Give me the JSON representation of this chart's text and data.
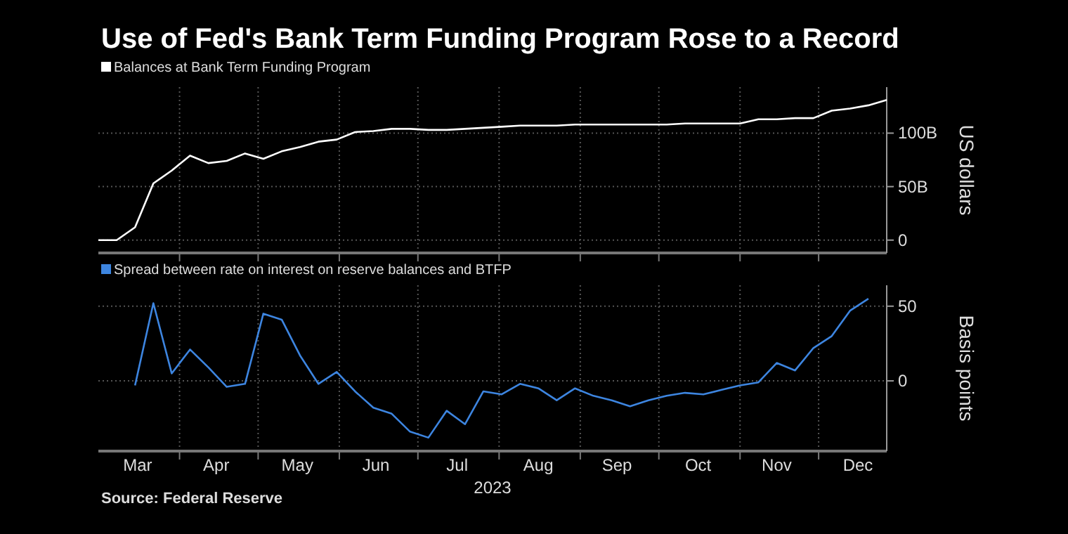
{
  "chart_data": [
    {
      "type": "line",
      "title": "Use of Fed's Bank Term Funding Program Rose to a Record",
      "ylabel": "US dollars",
      "x": [
        "2023-03-01",
        "2023-03-08",
        "2023-03-15",
        "2023-03-22",
        "2023-03-29",
        "2023-04-05",
        "2023-04-12",
        "2023-04-19",
        "2023-04-26",
        "2023-05-03",
        "2023-05-10",
        "2023-05-17",
        "2023-05-24",
        "2023-05-31",
        "2023-06-07",
        "2023-06-14",
        "2023-06-21",
        "2023-06-28",
        "2023-07-05",
        "2023-07-12",
        "2023-07-19",
        "2023-07-26",
        "2023-08-02",
        "2023-08-09",
        "2023-08-16",
        "2023-08-23",
        "2023-08-30",
        "2023-09-06",
        "2023-09-13",
        "2023-09-20",
        "2023-09-27",
        "2023-10-04",
        "2023-10-11",
        "2023-10-18",
        "2023-10-25",
        "2023-11-01",
        "2023-11-08",
        "2023-11-15",
        "2023-11-22",
        "2023-11-29",
        "2023-12-06",
        "2023-12-13",
        "2023-12-20",
        "2023-12-27"
      ],
      "series": [
        {
          "name": "Balances at Bank Term Funding Program",
          "color": "#ffffff",
          "values": [
            0,
            0,
            12,
            53,
            65,
            79,
            72,
            74,
            81,
            76,
            83,
            87,
            92,
            94,
            101,
            102,
            104,
            104,
            103,
            103,
            104,
            105,
            106,
            107,
            107,
            107,
            108,
            108,
            108,
            108,
            108,
            108,
            109,
            109,
            109,
            109,
            113,
            113,
            114,
            114,
            121,
            123,
            126,
            131
          ]
        }
      ],
      "xlim": [
        "2023-03-01",
        "2023-12-27"
      ],
      "xticks": [
        {
          "value": "2023-04-01",
          "label": null
        },
        {
          "value": "2023-05-01",
          "label": null
        },
        {
          "value": "2023-06-01",
          "label": null
        },
        {
          "value": "2023-07-01",
          "label": null
        },
        {
          "value": "2023-08-01",
          "label": null
        },
        {
          "value": "2023-09-01",
          "label": null
        },
        {
          "value": "2023-10-01",
          "label": null
        },
        {
          "value": "2023-11-01",
          "label": null
        },
        {
          "value": "2023-12-01",
          "label": null
        }
      ],
      "ylim": [
        -12,
        143
      ],
      "yticks": [
        {
          "value": 0,
          "label": "0"
        },
        {
          "value": 50,
          "label": "50B"
        },
        {
          "value": 100,
          "label": "100B"
        }
      ],
      "tick_labels": "y",
      "grid": true,
      "legend": "top left"
    },
    {
      "type": "line",
      "ylabel": "Basis points",
      "xlabel": "2023",
      "annotations": [
        "Source: Federal Reserve"
      ],
      "series": [
        {
          "name": "Spread between rate on interest on reserve balances and BTFP",
          "color": "#3d85e0",
          "x": [
            "2023-03-15",
            "2023-03-22",
            "2023-03-29",
            "2023-04-05",
            "2023-04-12",
            "2023-04-19",
            "2023-04-26",
            "2023-05-03",
            "2023-05-10",
            "2023-05-17",
            "2023-05-24",
            "2023-05-31",
            "2023-06-07",
            "2023-06-14",
            "2023-06-21",
            "2023-06-28",
            "2023-07-05",
            "2023-07-12",
            "2023-07-19",
            "2023-07-26",
            "2023-08-02",
            "2023-08-09",
            "2023-08-16",
            "2023-08-23",
            "2023-08-30",
            "2023-09-06",
            "2023-09-13",
            "2023-09-20",
            "2023-09-27",
            "2023-10-04",
            "2023-10-11",
            "2023-10-18",
            "2023-10-25",
            "2023-11-01",
            "2023-11-08",
            "2023-11-15",
            "2023-11-22",
            "2023-11-29",
            "2023-12-06",
            "2023-12-13",
            "2023-12-20"
          ],
          "values": [
            -3,
            52,
            5,
            21,
            9,
            -4,
            -2,
            45,
            41,
            17,
            -2,
            6,
            -7,
            -18,
            -22,
            -34,
            -38,
            -20,
            -29,
            -7,
            -9,
            -2,
            -5,
            -13,
            -5,
            -10,
            -13,
            -17,
            -13,
            -10,
            -8,
            -9,
            -6,
            -3,
            -1,
            12,
            7,
            22,
            30,
            47,
            55
          ]
        }
      ],
      "xlim": [
        "2023-03-01",
        "2023-12-27"
      ],
      "xticks": [
        {
          "value": "2023-04-01",
          "label": null
        },
        {
          "value": "2023-05-01",
          "label": null
        },
        {
          "value": "2023-06-01",
          "label": null
        },
        {
          "value": "2023-07-01",
          "label": null
        },
        {
          "value": "2023-08-01",
          "label": null
        },
        {
          "value": "2023-09-01",
          "label": null
        },
        {
          "value": "2023-10-01",
          "label": null
        },
        {
          "value": "2023-11-01",
          "label": null
        },
        {
          "value": "2023-12-01",
          "label": null
        },
        {
          "value": "2023-03-16",
          "label": "Mar"
        },
        {
          "value": "2023-04-15",
          "label": "Apr"
        },
        {
          "value": "2023-05-16",
          "label": "May"
        },
        {
          "value": "2023-06-15",
          "label": "Jun"
        },
        {
          "value": "2023-07-16",
          "label": "Jul"
        },
        {
          "value": "2023-08-16",
          "label": "Aug"
        },
        {
          "value": "2023-09-15",
          "label": "Sep"
        },
        {
          "value": "2023-10-16",
          "label": "Oct"
        },
        {
          "value": "2023-11-15",
          "label": "Nov"
        },
        {
          "value": "2023-12-16",
          "label": "Dec"
        }
      ],
      "ylim": [
        -47,
        64
      ],
      "yticks": [
        0,
        50
      ],
      "grid": true,
      "legend": "top left"
    }
  ]
}
